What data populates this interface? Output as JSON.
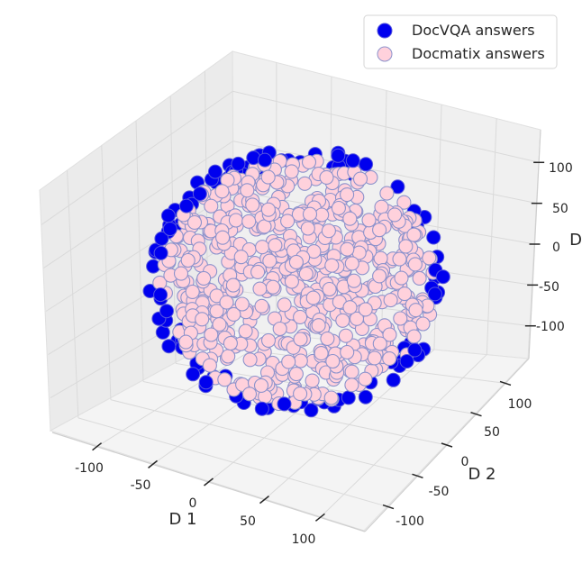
{
  "chart_data": {
    "type": "scatter",
    "projection": "3d",
    "xlabel": "D 1",
    "ylabel": "D 2",
    "zlabel": "D",
    "x_ticks": [
      -100,
      -50,
      0,
      50,
      100
    ],
    "y_ticks": [
      -100,
      -50,
      0,
      50,
      100
    ],
    "z_ticks": [
      -100,
      -50,
      0,
      50,
      100
    ],
    "xlim": [
      -140,
      140
    ],
    "ylim": [
      -140,
      140
    ],
    "zlim": [
      -140,
      140
    ],
    "grid": true,
    "legend_position": "top-right",
    "series": [
      {
        "name": "DocVQA answers",
        "color": "#0000ee",
        "edge_color": "#5555dd"
      },
      {
        "name": "Docmatix answers",
        "color": "#ffd1dc",
        "edge_color": "#8d93cc"
      }
    ]
  }
}
